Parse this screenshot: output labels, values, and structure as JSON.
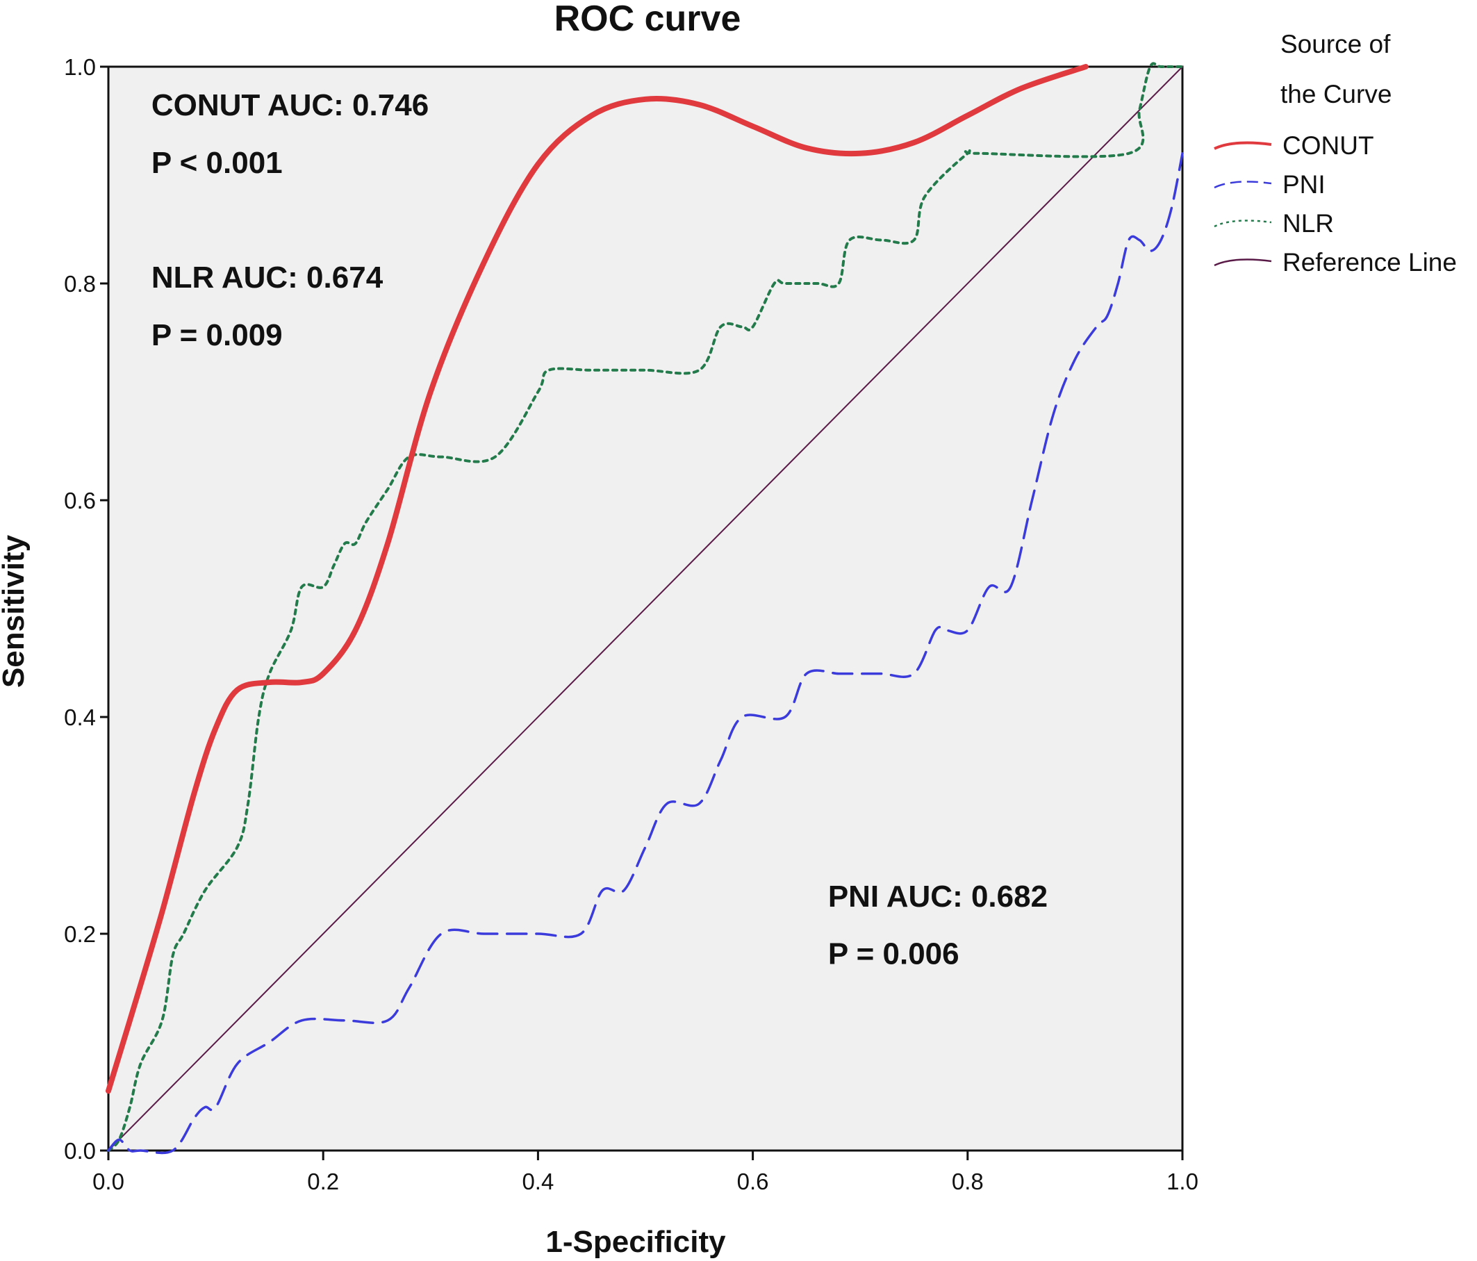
{
  "chart_data": {
    "type": "line",
    "title": "ROC curve",
    "xlabel": "1-Specificity",
    "ylabel": "Sensitivity",
    "xlim": [
      0,
      1
    ],
    "ylim": [
      0,
      1
    ],
    "xticks": [
      "0.0",
      "0.2",
      "0.4",
      "0.6",
      "0.8",
      "1.0"
    ],
    "yticks": [
      "0.0",
      "0.2",
      "0.4",
      "0.6",
      "0.8",
      "1.0"
    ],
    "legend": {
      "title_lines": [
        "Source of",
        "the Curve"
      ],
      "position": "right",
      "entries": [
        "CONUT",
        "PNI",
        "NLR",
        "Reference Line"
      ]
    },
    "annotations": [
      {
        "text": "CONUT AUC: 0.746",
        "x": 0.04,
        "y": 0.955
      },
      {
        "text": "P < 0.001",
        "x": 0.04,
        "y": 0.902
      },
      {
        "text": "NLR AUC: 0.674",
        "x": 0.04,
        "y": 0.796
      },
      {
        "text": "P = 0.009",
        "x": 0.04,
        "y": 0.743
      },
      {
        "text": "PNI AUC: 0.682",
        "x": 0.67,
        "y": 0.225
      },
      {
        "text": "P = 0.006",
        "x": 0.67,
        "y": 0.172
      }
    ],
    "series": [
      {
        "name": "CONUT",
        "color": "#e0393e",
        "style": "solid",
        "x": [
          0.0,
          0.02,
          0.05,
          0.08,
          0.1,
          0.12,
          0.15,
          0.18,
          0.2,
          0.23,
          0.26,
          0.3,
          0.35,
          0.4,
          0.45,
          0.5,
          0.55,
          0.6,
          0.65,
          0.7,
          0.75,
          0.8,
          0.85,
          0.91
        ],
        "y": [
          0.055,
          0.12,
          0.22,
          0.33,
          0.39,
          0.425,
          0.432,
          0.432,
          0.44,
          0.48,
          0.56,
          0.7,
          0.82,
          0.91,
          0.955,
          0.97,
          0.965,
          0.945,
          0.925,
          0.92,
          0.93,
          0.955,
          0.98,
          1.0
        ]
      },
      {
        "name": "PNI",
        "color": "#3b3bdc",
        "style": "dashed",
        "x": [
          0.0,
          0.01,
          0.02,
          0.03,
          0.06,
          0.08,
          0.09,
          0.1,
          0.12,
          0.15,
          0.18,
          0.22,
          0.26,
          0.28,
          0.31,
          0.35,
          0.4,
          0.44,
          0.46,
          0.48,
          0.5,
          0.52,
          0.55,
          0.57,
          0.59,
          0.63,
          0.65,
          0.68,
          0.7,
          0.72,
          0.75,
          0.77,
          0.78,
          0.8,
          0.82,
          0.84,
          0.86,
          0.88,
          0.9,
          0.92,
          0.93,
          0.94,
          0.95,
          0.96,
          0.97,
          0.98,
          0.99,
          1.0
        ],
        "y": [
          0.0,
          0.01,
          0.0,
          0.0,
          0.0,
          0.03,
          0.04,
          0.04,
          0.08,
          0.1,
          0.12,
          0.12,
          0.12,
          0.15,
          0.2,
          0.2,
          0.2,
          0.2,
          0.24,
          0.24,
          0.28,
          0.32,
          0.32,
          0.36,
          0.4,
          0.4,
          0.44,
          0.44,
          0.44,
          0.44,
          0.44,
          0.48,
          0.48,
          0.48,
          0.52,
          0.52,
          0.6,
          0.68,
          0.73,
          0.76,
          0.77,
          0.8,
          0.84,
          0.84,
          0.83,
          0.84,
          0.87,
          0.92
        ]
      },
      {
        "name": "NLR",
        "color": "#237a4b",
        "style": "dotted",
        "x": [
          0.0,
          0.01,
          0.02,
          0.03,
          0.05,
          0.06,
          0.07,
          0.09,
          0.12,
          0.13,
          0.14,
          0.15,
          0.17,
          0.18,
          0.2,
          0.21,
          0.22,
          0.23,
          0.24,
          0.26,
          0.28,
          0.31,
          0.36,
          0.4,
          0.41,
          0.45,
          0.5,
          0.55,
          0.57,
          0.59,
          0.6,
          0.62,
          0.63,
          0.66,
          0.68,
          0.69,
          0.72,
          0.75,
          0.76,
          0.8,
          0.81,
          0.95,
          0.96,
          0.97,
          0.98,
          1.0
        ],
        "y": [
          0.0,
          0.01,
          0.04,
          0.08,
          0.12,
          0.18,
          0.2,
          0.24,
          0.28,
          0.32,
          0.4,
          0.44,
          0.48,
          0.52,
          0.52,
          0.54,
          0.56,
          0.56,
          0.58,
          0.61,
          0.64,
          0.64,
          0.64,
          0.7,
          0.72,
          0.72,
          0.72,
          0.72,
          0.76,
          0.76,
          0.76,
          0.8,
          0.8,
          0.8,
          0.8,
          0.84,
          0.84,
          0.84,
          0.88,
          0.92,
          0.92,
          0.92,
          0.96,
          1.0,
          1.0,
          1.0
        ]
      },
      {
        "name": "Reference Line",
        "color": "#5a1a47",
        "style": "solid",
        "x": [
          0.0,
          1.0
        ],
        "y": [
          0.0,
          1.0
        ]
      }
    ]
  }
}
